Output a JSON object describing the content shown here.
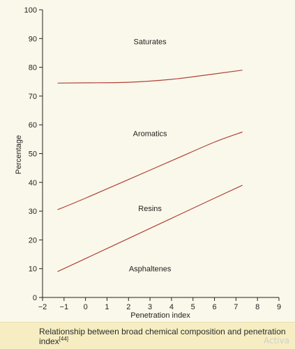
{
  "chart_data": {
    "type": "line",
    "title": "",
    "xlabel": "Penetration index",
    "ylabel": "Percentage",
    "xlim": [
      -2,
      9
    ],
    "ylim": [
      0,
      100
    ],
    "xticks": [
      -2,
      -1,
      0,
      1,
      2,
      3,
      4,
      5,
      6,
      7,
      8,
      9
    ],
    "yticks": [
      0,
      10,
      20,
      30,
      40,
      50,
      60,
      70,
      80,
      90,
      100
    ],
    "grid": false,
    "line_color": "#b0413a",
    "series": [
      {
        "x": [
          -1.3,
          0,
          2,
          4,
          6,
          7.3
        ],
        "y": [
          74.5,
          74.6,
          74.8,
          75.8,
          77.7,
          79
        ]
      },
      {
        "x": [
          -1.3,
          0,
          2,
          4,
          6,
          7.3
        ],
        "y": [
          30.5,
          34.5,
          41,
          47.5,
          54,
          57.5
        ]
      },
      {
        "x": [
          -1.3,
          0,
          2,
          4,
          6,
          7.3
        ],
        "y": [
          9,
          13.5,
          20.5,
          27.5,
          34.5,
          39
        ]
      }
    ],
    "region_labels": [
      {
        "text": "Saturates",
        "x": 3,
        "y": 89
      },
      {
        "text": "Aromatics",
        "x": 3,
        "y": 57
      },
      {
        "text": "Resins",
        "x": 3,
        "y": 31
      },
      {
        "text": "Asphaltenes",
        "x": 3,
        "y": 10
      }
    ]
  },
  "caption": {
    "text": "Relationship between broad chemical composition and penetration index",
    "ref": "[44]"
  },
  "watermark": "Activa"
}
